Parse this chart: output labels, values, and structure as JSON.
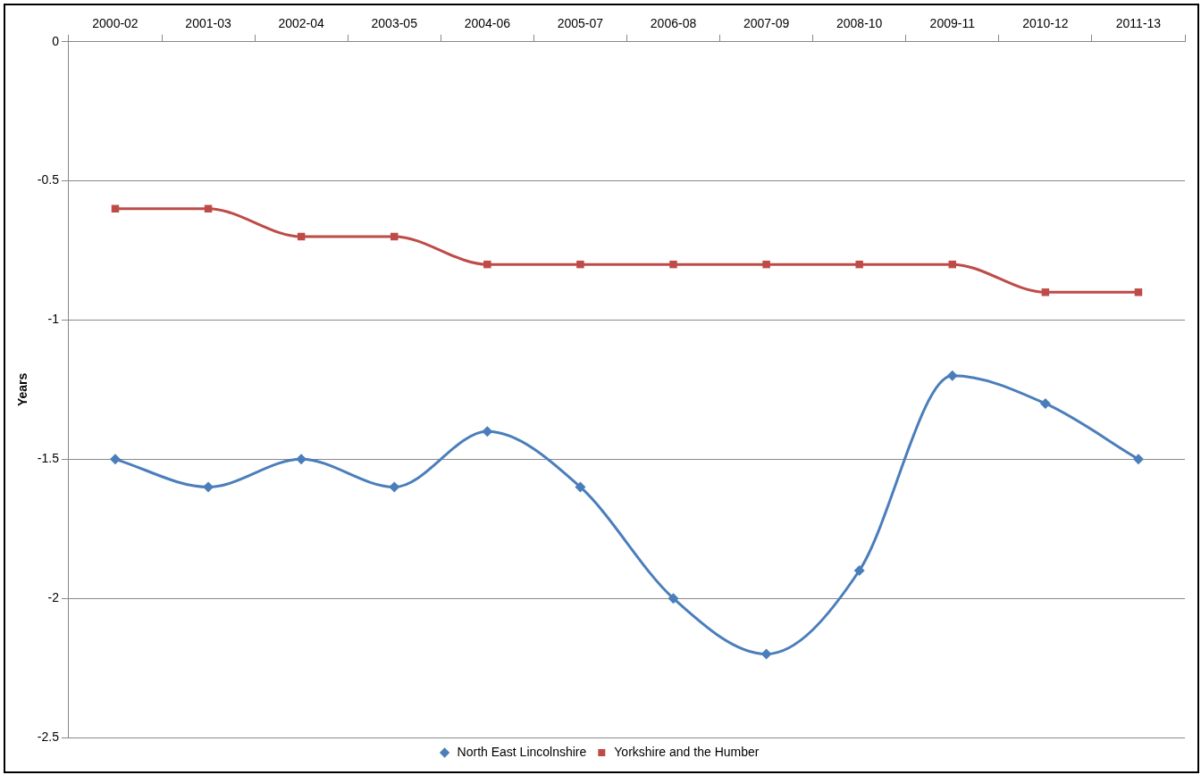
{
  "chart_data": {
    "type": "line",
    "ylabel": "Years",
    "categories": [
      "2000-02",
      "2001-03",
      "2002-04",
      "2003-05",
      "2004-06",
      "2005-07",
      "2006-08",
      "2007-09",
      "2008-10",
      "2009-11",
      "2010-12",
      "2011-13"
    ],
    "series": [
      {
        "name": "North East Lincolnshire",
        "color": "#4a7ebb",
        "marker": "diamond",
        "values": [
          -1.5,
          -1.6,
          -1.5,
          -1.6,
          -1.4,
          -1.6,
          -2.0,
          -2.2,
          -1.9,
          -1.2,
          -1.3,
          -1.5
        ]
      },
      {
        "name": "Yorkshire and the Humber",
        "color": "#be4b48",
        "marker": "square",
        "values": [
          -0.6,
          -0.6,
          -0.7,
          -0.7,
          -0.8,
          -0.8,
          -0.8,
          -0.8,
          -0.8,
          -0.8,
          -0.9,
          -0.9
        ]
      }
    ],
    "ylim": [
      -2.5,
      0
    ],
    "yticks": [
      0,
      -0.5,
      -1,
      -1.5,
      -2,
      -2.5
    ],
    "grid": "y",
    "legend": "bottom"
  }
}
